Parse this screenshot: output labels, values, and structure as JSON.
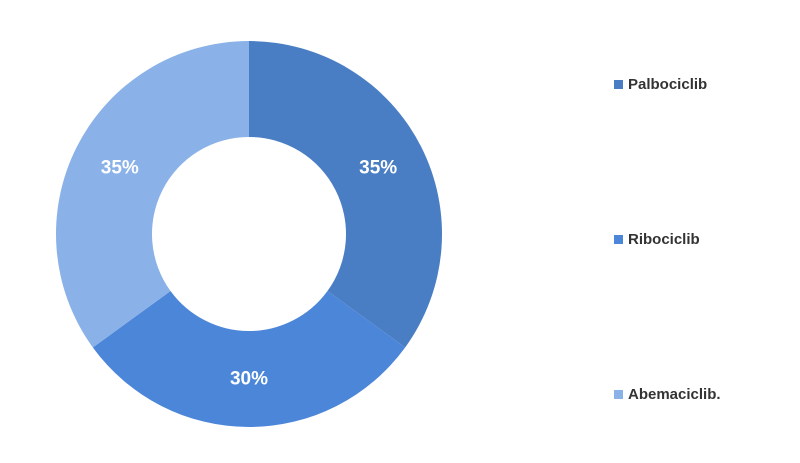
{
  "chart_data": {
    "type": "pie",
    "donut": true,
    "categories": [
      "Palbociclib",
      "Ribociclib",
      "Abemaciclib."
    ],
    "values": [
      35,
      30,
      35
    ],
    "value_labels": [
      "35%",
      "30%",
      "35%"
    ],
    "colors": [
      "#4a7ec4",
      "#4c86d9",
      "#8ab2e8"
    ],
    "legend_position": "right"
  }
}
